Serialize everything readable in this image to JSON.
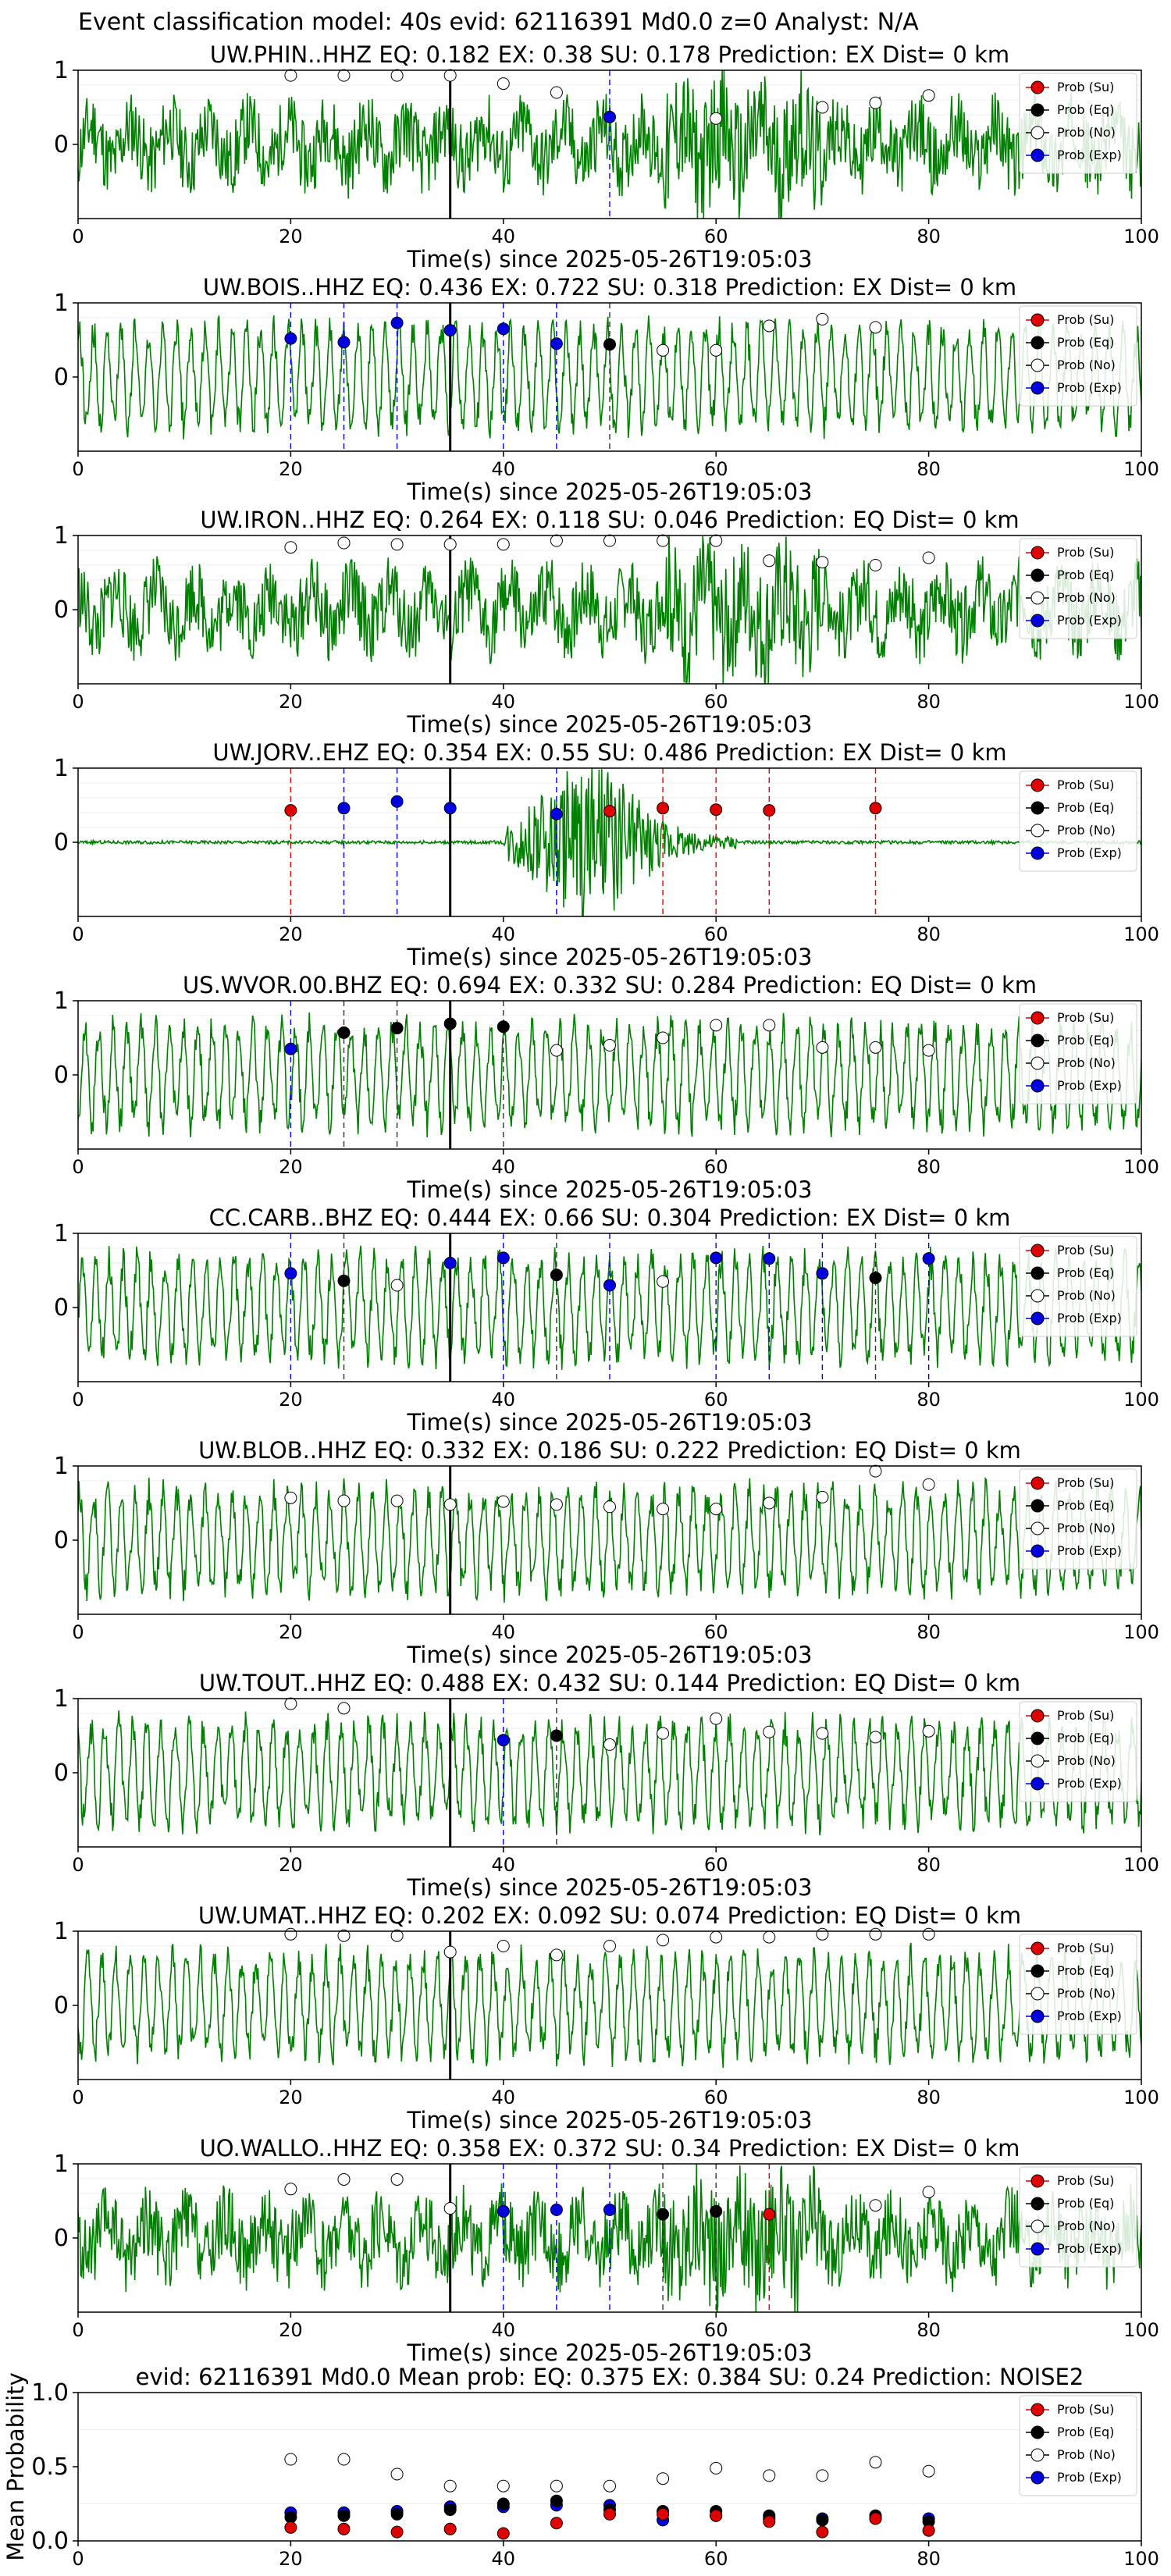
{
  "suptitle": "Event classification model: 40s evid: 62116391 Md0.0 z=0 Analyst: N/A",
  "legend_labels": [
    "Prob (Su)",
    "Prob (Eq)",
    "Prob (No)",
    "Prob (Exp)"
  ],
  "colors": {
    "trace": "#008000",
    "su": "#e00000",
    "eq": "#000000",
    "no": "#ffffff",
    "exp": "#0000e0",
    "pick": "#000000"
  },
  "xlabel": "Time(s) since 2025-05-26T19:05:03",
  "chart_data": [
    {
      "type": "line",
      "title": "UW.PHIN..HHZ    EQ: 0.182   EX: 0.38   SU: 0.178    Prediction: EX    Dist= 0 km",
      "xlim": [
        0,
        100
      ],
      "ylim": [
        -1,
        1
      ],
      "yticks": [
        0,
        1
      ],
      "xticks": [
        0,
        20,
        40,
        60,
        80,
        100
      ],
      "pick_time": 35,
      "noise_style": "uniform",
      "seed": 11,
      "no": [
        [
          20,
          0.93
        ],
        [
          25,
          0.93
        ],
        [
          30,
          0.93
        ],
        [
          35,
          0.93
        ],
        [
          40,
          0.82
        ],
        [
          45,
          0.7
        ],
        [
          60,
          0.35
        ],
        [
          70,
          0.5
        ],
        [
          75,
          0.56
        ],
        [
          80,
          0.66
        ]
      ],
      "eq": [],
      "su": [],
      "exp": [
        [
          50,
          0.37
        ]
      ],
      "lines_eq": [],
      "lines_su": [],
      "lines_exp": [
        50
      ]
    },
    {
      "type": "line",
      "title": "UW.BOIS..HHZ    EQ: 0.436   EX: 0.722   SU: 0.318    Prediction: EX    Dist= 0 km",
      "xlim": [
        0,
        100
      ],
      "ylim": [
        -1,
        1
      ],
      "yticks": [
        0,
        1
      ],
      "xticks": [
        0,
        20,
        40,
        60,
        80,
        100
      ],
      "pick_time": 35,
      "noise_style": "wave",
      "seed": 22,
      "no": [
        [
          55,
          0.36
        ],
        [
          60,
          0.36
        ],
        [
          65,
          0.69
        ],
        [
          70,
          0.78
        ],
        [
          75,
          0.67
        ]
      ],
      "eq": [
        [
          50,
          0.44
        ]
      ],
      "su": [],
      "exp": [
        [
          20,
          0.52
        ],
        [
          25,
          0.47
        ],
        [
          30,
          0.73
        ],
        [
          35,
          0.63
        ],
        [
          40,
          0.65
        ],
        [
          45,
          0.45
        ]
      ],
      "lines_eq": [
        50
      ],
      "lines_su": [],
      "lines_exp": [
        20,
        25,
        30,
        40,
        45
      ]
    },
    {
      "type": "line",
      "title": "UW.IRON..HHZ    EQ: 0.264   EX: 0.118   SU: 0.046    Prediction: EQ    Dist= 0 km",
      "xlim": [
        0,
        100
      ],
      "ylim": [
        -1,
        1
      ],
      "yticks": [
        0,
        1
      ],
      "xticks": [
        0,
        20,
        40,
        60,
        80,
        100
      ],
      "pick_time": 35,
      "noise_style": "uniform",
      "seed": 33,
      "no": [
        [
          20,
          0.84
        ],
        [
          25,
          0.9
        ],
        [
          30,
          0.88
        ],
        [
          35,
          0.88
        ],
        [
          40,
          0.88
        ],
        [
          45,
          0.93
        ],
        [
          50,
          0.93
        ],
        [
          55,
          0.93
        ],
        [
          60,
          0.93
        ],
        [
          65,
          0.66
        ],
        [
          70,
          0.64
        ],
        [
          75,
          0.6
        ],
        [
          80,
          0.7
        ]
      ],
      "eq": [],
      "su": [],
      "exp": [],
      "lines_eq": [],
      "lines_su": [],
      "lines_exp": []
    },
    {
      "type": "line",
      "title": "UW.JORV..EHZ    EQ: 0.354   EX: 0.55   SU: 0.486    Prediction: EX    Dist= 0 km",
      "xlim": [
        0,
        100
      ],
      "ylim": [
        -1,
        1
      ],
      "yticks": [
        0,
        1
      ],
      "xticks": [
        0,
        20,
        40,
        60,
        80,
        100
      ],
      "pick_time": 35,
      "noise_style": "burst",
      "seed": 44,
      "no": [],
      "eq": [],
      "su": [
        [
          20,
          0.43
        ],
        [
          50,
          0.42
        ],
        [
          55,
          0.46
        ],
        [
          60,
          0.44
        ],
        [
          65,
          0.43
        ],
        [
          75,
          0.46
        ]
      ],
      "exp": [
        [
          25,
          0.46
        ],
        [
          30,
          0.55
        ],
        [
          35,
          0.46
        ],
        [
          45,
          0.38
        ]
      ],
      "lines_eq": [],
      "lines_su": [
        20,
        55,
        60,
        65,
        75
      ],
      "lines_exp": [
        25,
        30,
        45
      ]
    },
    {
      "type": "line",
      "title": "US.WVOR.00.BHZ    EQ: 0.694   EX: 0.332   SU: 0.284    Prediction: EQ    Dist= 0 km",
      "xlim": [
        0,
        100
      ],
      "ylim": [
        -1,
        1
      ],
      "yticks": [
        0,
        1
      ],
      "xticks": [
        0,
        20,
        40,
        60,
        80,
        100
      ],
      "pick_time": 35,
      "noise_style": "wave",
      "seed": 55,
      "no": [
        [
          45,
          0.33
        ],
        [
          50,
          0.4
        ],
        [
          55,
          0.5
        ],
        [
          60,
          0.67
        ],
        [
          65,
          0.67
        ],
        [
          70,
          0.37
        ],
        [
          75,
          0.37
        ],
        [
          80,
          0.33
        ]
      ],
      "eq": [
        [
          25,
          0.57
        ],
        [
          30,
          0.63
        ],
        [
          35,
          0.69
        ],
        [
          40,
          0.65
        ]
      ],
      "su": [],
      "exp": [
        [
          20,
          0.35
        ]
      ],
      "lines_eq": [
        25,
        30,
        40
      ],
      "lines_su": [],
      "lines_exp": [
        20
      ]
    },
    {
      "type": "line",
      "title": "CC.CARB..BHZ    EQ: 0.444   EX: 0.66   SU: 0.304    Prediction: EX    Dist= 0 km",
      "xlim": [
        0,
        100
      ],
      "ylim": [
        -1,
        1
      ],
      "yticks": [
        0,
        1
      ],
      "xticks": [
        0,
        20,
        40,
        60,
        80,
        100
      ],
      "pick_time": 35,
      "noise_style": "wave",
      "seed": 66,
      "no": [
        [
          30,
          0.3
        ],
        [
          55,
          0.35
        ]
      ],
      "eq": [
        [
          25,
          0.36
        ],
        [
          45,
          0.44
        ],
        [
          75,
          0.4
        ]
      ],
      "su": [],
      "exp": [
        [
          20,
          0.46
        ],
        [
          35,
          0.6
        ],
        [
          40,
          0.67
        ],
        [
          50,
          0.3
        ],
        [
          60,
          0.67
        ],
        [
          65,
          0.66
        ],
        [
          70,
          0.46
        ],
        [
          80,
          0.66
        ]
      ],
      "lines_eq": [
        25,
        45,
        75
      ],
      "lines_su": [],
      "lines_exp": [
        20,
        40,
        50,
        60,
        65,
        70,
        80
      ]
    },
    {
      "type": "line",
      "title": "UW.BLOB..HHZ    EQ: 0.332   EX: 0.186   SU: 0.222    Prediction: EQ    Dist= 0 km",
      "xlim": [
        0,
        100
      ],
      "ylim": [
        -1,
        1
      ],
      "yticks": [
        0,
        1
      ],
      "xticks": [
        0,
        20,
        40,
        60,
        80,
        100
      ],
      "pick_time": 35,
      "noise_style": "wave",
      "seed": 77,
      "no": [
        [
          20,
          0.57
        ],
        [
          25,
          0.53
        ],
        [
          30,
          0.53
        ],
        [
          35,
          0.48
        ],
        [
          40,
          0.52
        ],
        [
          45,
          0.48
        ],
        [
          50,
          0.45
        ],
        [
          55,
          0.42
        ],
        [
          60,
          0.42
        ],
        [
          65,
          0.5
        ],
        [
          70,
          0.58
        ],
        [
          75,
          0.93
        ],
        [
          80,
          0.75
        ]
      ],
      "eq": [],
      "su": [],
      "exp": [],
      "lines_eq": [],
      "lines_su": [],
      "lines_exp": []
    },
    {
      "type": "line",
      "title": "UW.TOUT..HHZ    EQ: 0.488   EX: 0.432   SU: 0.144    Prediction: EQ    Dist= 0 km",
      "xlim": [
        0,
        100
      ],
      "ylim": [
        -1,
        1
      ],
      "yticks": [
        0,
        1
      ],
      "xticks": [
        0,
        20,
        40,
        60,
        80,
        100
      ],
      "pick_time": 35,
      "noise_style": "wave",
      "seed": 88,
      "no": [
        [
          20,
          0.93
        ],
        [
          25,
          0.87
        ],
        [
          50,
          0.38
        ],
        [
          55,
          0.53
        ],
        [
          60,
          0.73
        ],
        [
          65,
          0.55
        ],
        [
          70,
          0.53
        ],
        [
          75,
          0.48
        ],
        [
          80,
          0.56
        ]
      ],
      "eq": [
        [
          45,
          0.5
        ]
      ],
      "su": [],
      "exp": [
        [
          40,
          0.44
        ]
      ],
      "lines_eq": [
        45
      ],
      "lines_su": [],
      "lines_exp": [
        40
      ]
    },
    {
      "type": "line",
      "title": "UW.UMAT..HHZ    EQ: 0.202   EX: 0.092   SU: 0.074    Prediction: EQ    Dist= 0 km",
      "xlim": [
        0,
        100
      ],
      "ylim": [
        -1,
        1
      ],
      "yticks": [
        0,
        1
      ],
      "xticks": [
        0,
        20,
        40,
        60,
        80,
        100
      ],
      "pick_time": 35,
      "noise_style": "wave",
      "seed": 99,
      "no": [
        [
          20,
          0.96
        ],
        [
          25,
          0.94
        ],
        [
          30,
          0.94
        ],
        [
          35,
          0.72
        ],
        [
          40,
          0.8
        ],
        [
          45,
          0.68
        ],
        [
          50,
          0.8
        ],
        [
          55,
          0.88
        ],
        [
          60,
          0.92
        ],
        [
          65,
          0.92
        ],
        [
          70,
          0.96
        ],
        [
          75,
          0.96
        ],
        [
          80,
          0.96
        ]
      ],
      "eq": [],
      "su": [],
      "exp": [],
      "lines_eq": [],
      "lines_su": [],
      "lines_exp": []
    },
    {
      "type": "line",
      "title": "UO.WALLO..HHZ    EQ: 0.358   EX: 0.372   SU: 0.34    Prediction: EX    Dist= 0 km",
      "xlim": [
        0,
        100
      ],
      "ylim": [
        -1,
        1
      ],
      "yticks": [
        0,
        1
      ],
      "xticks": [
        0,
        20,
        40,
        60,
        80,
        100
      ],
      "pick_time": 35,
      "noise_style": "uniform",
      "seed": 111,
      "no": [
        [
          20,
          0.66
        ],
        [
          25,
          0.79
        ],
        [
          30,
          0.79
        ],
        [
          35,
          0.4
        ],
        [
          75,
          0.44
        ],
        [
          80,
          0.62
        ]
      ],
      "eq": [
        [
          55,
          0.32
        ],
        [
          60,
          0.36
        ]
      ],
      "su": [
        [
          65,
          0.32
        ]
      ],
      "exp": [
        [
          40,
          0.36
        ],
        [
          45,
          0.38
        ],
        [
          50,
          0.38
        ]
      ],
      "lines_eq": [
        55,
        60
      ],
      "lines_su": [
        65
      ],
      "lines_exp": [
        40,
        45,
        50
      ]
    }
  ],
  "summary": {
    "type": "scatter",
    "title": "evid: 62116391  Md0.0   Mean prob:    EQ: 0.375   EX: 0.384   SU: 0.24    Prediction: NOISE2",
    "ylabel": "Mean Probability",
    "xlim": [
      0,
      100
    ],
    "ylim": [
      0,
      1
    ],
    "yticks": [
      0.0,
      0.5,
      1.0
    ],
    "xticks": [
      0,
      20,
      40,
      60,
      80,
      100
    ],
    "no": [
      [
        20,
        0.55
      ],
      [
        25,
        0.55
      ],
      [
        30,
        0.45
      ],
      [
        35,
        0.37
      ],
      [
        40,
        0.37
      ],
      [
        45,
        0.37
      ],
      [
        50,
        0.37
      ],
      [
        55,
        0.42
      ],
      [
        60,
        0.49
      ],
      [
        65,
        0.44
      ],
      [
        70,
        0.44
      ],
      [
        75,
        0.53
      ],
      [
        80,
        0.47
      ]
    ],
    "eq": [
      [
        20,
        0.16
      ],
      [
        25,
        0.17
      ],
      [
        30,
        0.18
      ],
      [
        35,
        0.21
      ],
      [
        40,
        0.25
      ],
      [
        45,
        0.27
      ],
      [
        50,
        0.21
      ],
      [
        55,
        0.2
      ],
      [
        60,
        0.2
      ],
      [
        65,
        0.17
      ],
      [
        70,
        0.14
      ],
      [
        75,
        0.17
      ],
      [
        80,
        0.13
      ]
    ],
    "exp": [
      [
        20,
        0.19
      ],
      [
        25,
        0.19
      ],
      [
        30,
        0.2
      ],
      [
        35,
        0.23
      ],
      [
        40,
        0.23
      ],
      [
        45,
        0.24
      ],
      [
        50,
        0.24
      ],
      [
        55,
        0.14
      ],
      [
        60,
        0.17
      ],
      [
        65,
        0.15
      ],
      [
        70,
        0.15
      ],
      [
        75,
        0.15
      ],
      [
        80,
        0.15
      ]
    ],
    "su": [
      [
        20,
        0.09
      ],
      [
        25,
        0.08
      ],
      [
        30,
        0.06
      ],
      [
        35,
        0.08
      ],
      [
        40,
        0.05
      ],
      [
        45,
        0.12
      ],
      [
        50,
        0.18
      ],
      [
        55,
        0.18
      ],
      [
        60,
        0.17
      ],
      [
        65,
        0.13
      ],
      [
        70,
        0.06
      ],
      [
        75,
        0.15
      ],
      [
        80,
        0.07
      ]
    ]
  }
}
